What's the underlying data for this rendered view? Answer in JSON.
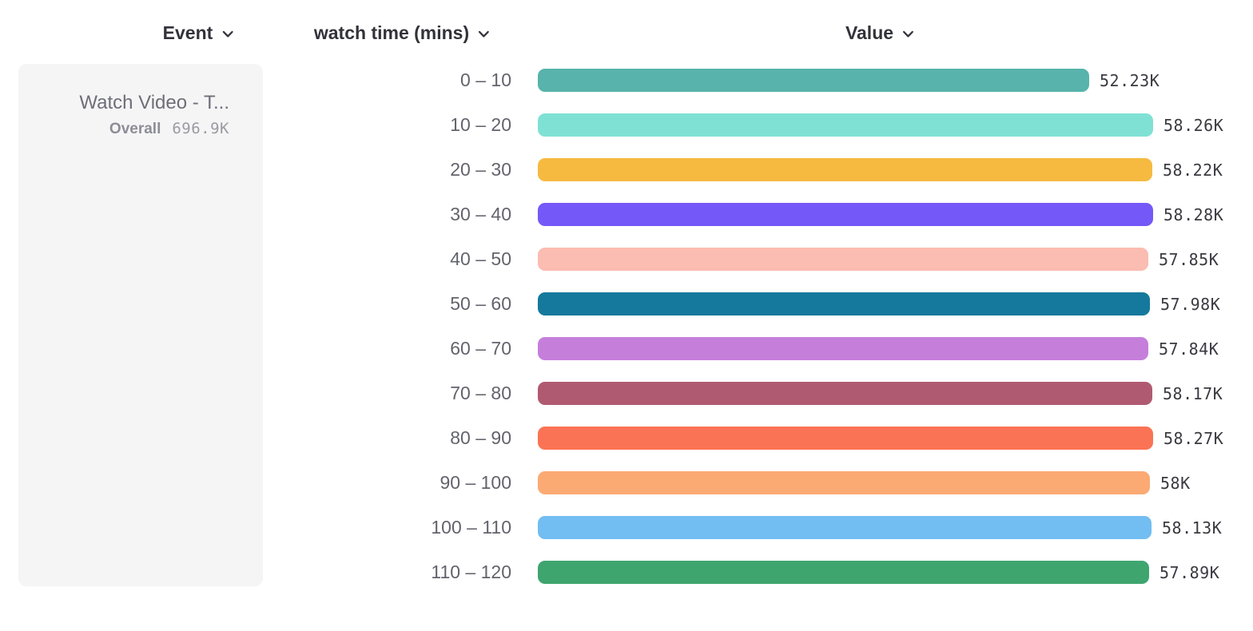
{
  "header": {
    "columns": [
      {
        "label": "Event"
      },
      {
        "label": "watch time (mins)"
      },
      {
        "label": "Value"
      }
    ]
  },
  "legend_card": {
    "event_name": "Watch Video - T...",
    "overall_label": "Overall",
    "overall_value": "696.9K"
  },
  "chart_data": {
    "type": "bar",
    "orientation": "horizontal",
    "title": "",
    "xlabel": "Value",
    "ylabel": "watch time (mins)",
    "grid": false,
    "legend_position": "left",
    "series_name": "Watch Video - T...",
    "categories": [
      "0 – 10",
      "10 – 20",
      "20 – 30",
      "30 – 40",
      "40 – 50",
      "50 – 60",
      "60 – 70",
      "70 – 80",
      "80 – 90",
      "90 – 100",
      "100 – 110",
      "110 – 120"
    ],
    "values": [
      52230,
      58260,
      58220,
      58280,
      57850,
      57980,
      57840,
      58170,
      58270,
      58000,
      58130,
      57890
    ],
    "value_labels": [
      "52.23K",
      "58.26K",
      "58.22K",
      "58.28K",
      "57.85K",
      "57.98K",
      "57.84K",
      "58.17K",
      "58.27K",
      "58K",
      "58.13K",
      "57.89K"
    ],
    "bar_colors": [
      "#57b3ab",
      "#7fe1d4",
      "#f6ba41",
      "#7558f8",
      "#fbbcb1",
      "#15799d",
      "#c67edb",
      "#b05a72",
      "#fb7355",
      "#fbaa74",
      "#72bdf2",
      "#3ea56f"
    ],
    "xlim": [
      0,
      58280
    ]
  },
  "colors": {
    "header_text": "#32323a",
    "category_label": "#63636d",
    "value_label": "#3a3a42",
    "card_background": "#f5f5f6",
    "event_name_text": "#6e6e78",
    "overall_label_text": "#8d8d97",
    "overall_value_text": "#9b9ba3"
  }
}
